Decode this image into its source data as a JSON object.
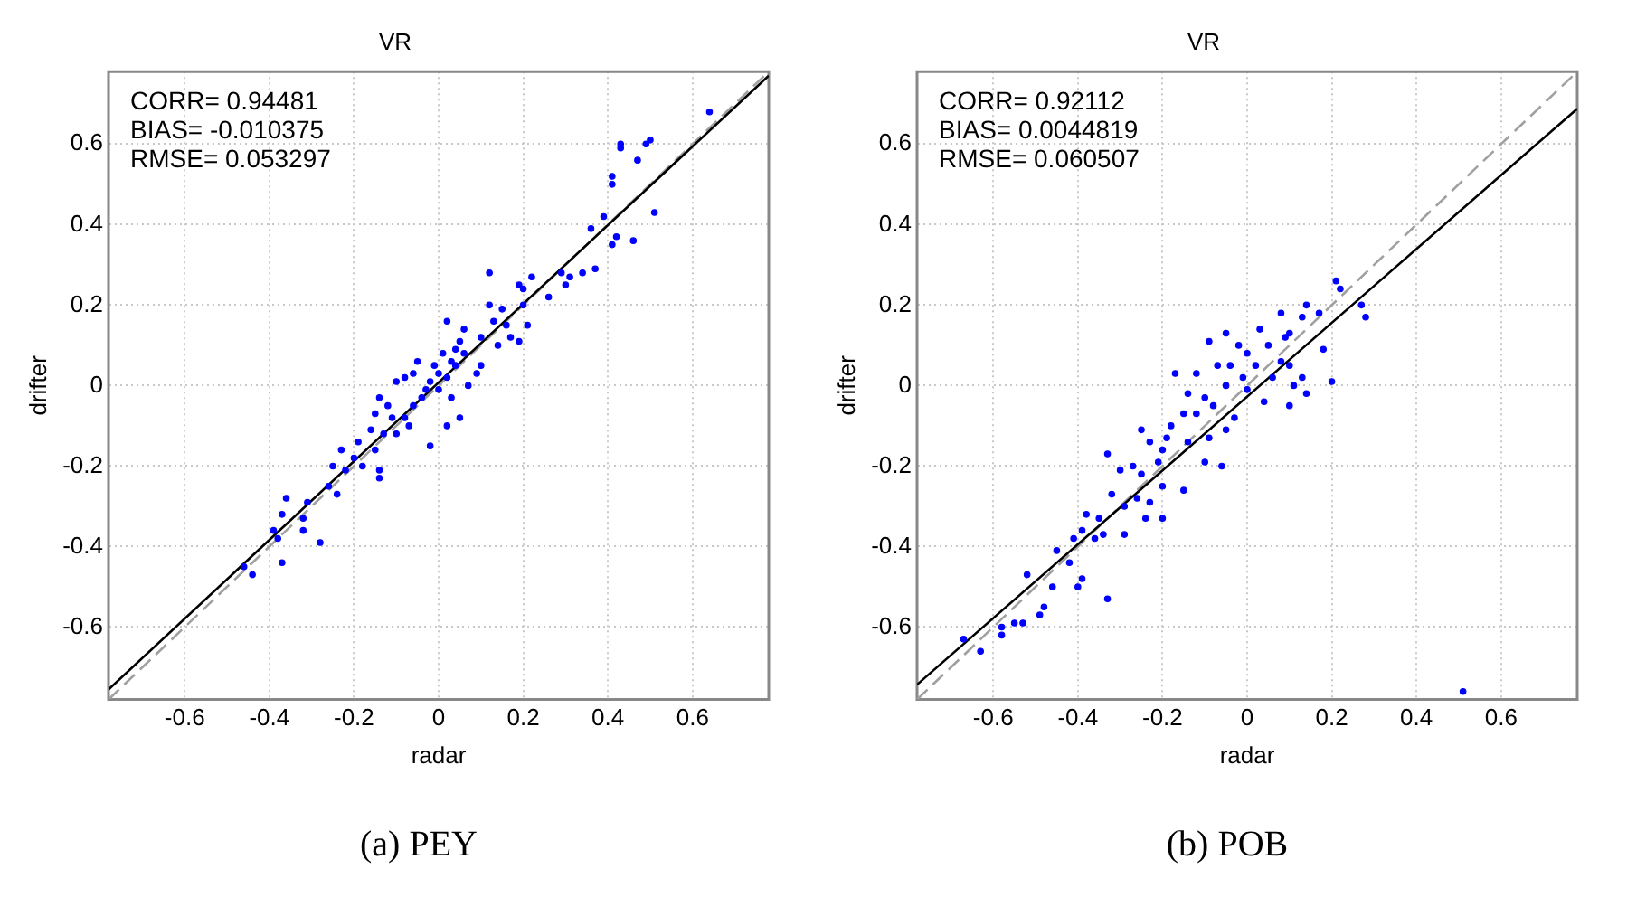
{
  "chart_data": [
    {
      "type": "scatter",
      "title": "VR",
      "xlabel": "radar",
      "ylabel": "drifter",
      "xlim": [
        -0.78,
        0.78
      ],
      "ylim": [
        -0.78,
        0.78
      ],
      "xticks": [
        -0.6,
        -0.4,
        -0.2,
        0,
        0.2,
        0.4,
        0.6
      ],
      "yticks": [
        -0.6,
        -0.4,
        -0.2,
        0,
        0.2,
        0.4,
        0.6
      ],
      "grid": true,
      "annotations": [
        "CORR= 0.94481",
        "BIAS= -0.010375",
        "RMSE= 0.053297",
        "(a) PEY"
      ],
      "series": [
        {
          "type": "scatter",
          "marker": "circle",
          "color": "#0000ff",
          "x": [
            0.64,
            0.43,
            0.43,
            0.5,
            0.49,
            0.41,
            0.41,
            0.47,
            0.51,
            0.39,
            0.36,
            0.46,
            0.41,
            0.42,
            0.37,
            0.34,
            0.29,
            0.3,
            0.31,
            0.26,
            0.2,
            0.19,
            0.22,
            0.2,
            0.21,
            0.15,
            0.16,
            0.17,
            0.12,
            0.12,
            0.13,
            0.14,
            0.19,
            0.1,
            0.09,
            0.06,
            0.05,
            0.04,
            0.02,
            0.03,
            0.02,
            0.01,
            0,
            -0.01,
            -0.02,
            -0.03,
            -0.05,
            -0.06,
            -0.04,
            -0.08,
            -0.1,
            -0.06,
            0,
            0.05,
            0.03,
            0.02,
            -0.02,
            -0.08,
            -0.11,
            -0.12,
            -0.14,
            -0.15,
            -0.13,
            -0.16,
            -0.19,
            -0.2,
            -0.22,
            -0.23,
            -0.25,
            -0.26,
            -0.18,
            -0.14,
            -0.14,
            -0.15,
            -0.1,
            -0.07,
            -0.24,
            -0.31,
            -0.32,
            -0.32,
            -0.28,
            -0.36,
            -0.37,
            -0.39,
            -0.38,
            -0.37,
            -0.44,
            -0.46,
            0.1,
            0.07,
            0.04,
            0.06
          ],
          "values": [
            0.68,
            0.6,
            0.59,
            0.61,
            0.6,
            0.52,
            0.5,
            0.56,
            0.43,
            0.42,
            0.39,
            0.36,
            0.35,
            0.37,
            0.29,
            0.28,
            0.28,
            0.25,
            0.27,
            0.22,
            0.24,
            0.25,
            0.27,
            0.2,
            0.15,
            0.19,
            0.15,
            0.12,
            0.28,
            0.2,
            0.16,
            0.1,
            0.11,
            0.12,
            0.03,
            0.08,
            0.11,
            0.05,
            0.16,
            0.06,
            0.02,
            0.08,
            0.03,
            0.05,
            0.01,
            -0.01,
            0.06,
            0.03,
            -0.03,
            0.02,
            0.01,
            -0.05,
            -0.01,
            -0.08,
            -0.03,
            -0.1,
            -0.15,
            -0.08,
            -0.08,
            -0.05,
            -0.03,
            -0.07,
            -0.12,
            -0.11,
            -0.14,
            -0.18,
            -0.21,
            -0.16,
            -0.2,
            -0.25,
            -0.2,
            -0.23,
            -0.21,
            -0.16,
            -0.12,
            -0.1,
            -0.27,
            -0.29,
            -0.33,
            -0.36,
            -0.39,
            -0.28,
            -0.32,
            -0.36,
            -0.38,
            -0.44,
            -0.47,
            -0.45,
            0.05,
            0,
            0.09,
            0.14
          ]
        },
        {
          "type": "line",
          "color": "#000000",
          "x": [
            -0.78,
            0.78
          ],
          "values": [
            -0.755,
            0.77
          ],
          "line_style": "solid"
        },
        {
          "type": "line",
          "color": "#a0a0a0",
          "x": [
            -0.78,
            0.78
          ],
          "values": [
            -0.78,
            0.78
          ],
          "line_style": "dashed"
        }
      ]
    },
    {
      "type": "scatter",
      "title": "VR",
      "xlabel": "radar",
      "ylabel": "drifter",
      "xlim": [
        -0.78,
        0.78
      ],
      "ylim": [
        -0.78,
        0.78
      ],
      "xticks": [
        -0.6,
        -0.4,
        -0.2,
        0,
        0.2,
        0.4,
        0.6
      ],
      "yticks": [
        -0.6,
        -0.4,
        -0.2,
        0,
        0.2,
        0.4,
        0.6
      ],
      "grid": true,
      "annotations": [
        "CORR= 0.92112",
        "BIAS= 0.0044819",
        "RMSE= 0.060507",
        "(b) POB"
      ],
      "series": [
        {
          "type": "scatter",
          "marker": "circle",
          "color": "#0000ff",
          "x": [
            0.51,
            0.28,
            0.27,
            0.22,
            0.21,
            0.17,
            0.14,
            0.13,
            0.18,
            0.1,
            0.1,
            0.09,
            0.08,
            0.05,
            0.03,
            0.02,
            0,
            -0.02,
            -0.05,
            -0.07,
            -0.09,
            -0.12,
            -0.17,
            -0.14,
            -0.1,
            -0.05,
            0,
            0.04,
            0.1,
            0.13,
            0.2,
            0.14,
            -0.03,
            -0.05,
            -0.08,
            -0.12,
            -0.15,
            -0.18,
            -0.19,
            -0.2,
            -0.23,
            -0.25,
            -0.21,
            -0.25,
            -0.27,
            -0.26,
            -0.29,
            -0.3,
            -0.33,
            -0.32,
            -0.35,
            -0.38,
            -0.36,
            -0.39,
            -0.41,
            -0.45,
            -0.42,
            -0.39,
            -0.4,
            -0.46,
            -0.52,
            -0.48,
            -0.49,
            -0.53,
            -0.55,
            -0.58,
            -0.58,
            -0.63,
            -0.67,
            -0.33,
            -0.1,
            -0.06,
            -0.14,
            -0.09,
            -0.2,
            -0.15,
            -0.23,
            -0.24,
            -0.2,
            -0.34,
            -0.29,
            -0.01,
            0.06,
            0.08,
            -0.04,
            0.11
          ],
          "values": [
            -0.76,
            0.17,
            0.2,
            0.24,
            0.26,
            0.18,
            0.2,
            0.17,
            0.09,
            0.13,
            0.05,
            0.12,
            0.18,
            0.1,
            0.14,
            0.05,
            0.08,
            0.1,
            0.13,
            0.05,
            0.11,
            0.03,
            0.03,
            -0.02,
            -0.03,
            0,
            -0.01,
            -0.04,
            -0.05,
            0.02,
            0.01,
            -0.02,
            -0.08,
            -0.11,
            -0.05,
            -0.07,
            -0.07,
            -0.1,
            -0.13,
            -0.16,
            -0.14,
            -0.11,
            -0.19,
            -0.22,
            -0.2,
            -0.28,
            -0.3,
            -0.21,
            -0.17,
            -0.27,
            -0.33,
            -0.32,
            -0.38,
            -0.36,
            -0.38,
            -0.41,
            -0.44,
            -0.48,
            -0.5,
            -0.5,
            -0.47,
            -0.55,
            -0.57,
            -0.59,
            -0.59,
            -0.6,
            -0.62,
            -0.66,
            -0.63,
            -0.53,
            -0.19,
            -0.2,
            -0.14,
            -0.13,
            -0.25,
            -0.26,
            -0.29,
            -0.33,
            -0.33,
            -0.37,
            -0.37,
            0.02,
            0.02,
            0.06,
            0.05,
            0
          ]
        },
        {
          "type": "line",
          "color": "#000000",
          "x": [
            -0.78,
            0.78
          ],
          "values": [
            -0.743,
            0.688
          ],
          "line_style": "solid"
        },
        {
          "type": "line",
          "color": "#a0a0a0",
          "x": [
            -0.78,
            0.78
          ],
          "values": [
            -0.78,
            0.78
          ],
          "line_style": "dashed"
        }
      ]
    }
  ]
}
